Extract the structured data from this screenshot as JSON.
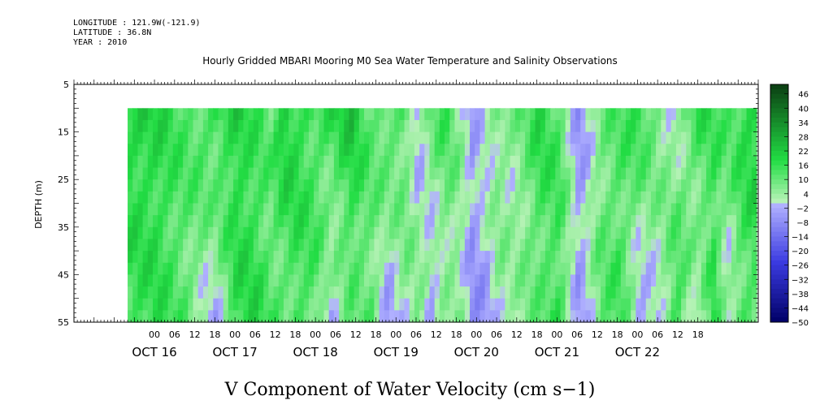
{
  "header": {
    "longitude": "LONGITUDE : 121.9W(-121.9)",
    "latitude": "LATITUDE : 36.8N",
    "year": "YEAR : 2010",
    "title": "Hourly Gridded MBARI Mooring M0 Sea Water Temperature and Salinity Observations"
  },
  "chart_data": {
    "type": "heatmap",
    "title": "Hourly Gridded MBARI Mooring M0 Sea Water Temperature and Salinity Observations",
    "variable": "V Component of Water Velocity (cm s-1)",
    "ylabel": "DEPTH (m)",
    "ylim": [
      5,
      55
    ],
    "y_inverted": true,
    "y_ticks": [
      5,
      15,
      25,
      35,
      45,
      55
    ],
    "data_depth_range": [
      10,
      55
    ],
    "hour_ticks": [
      "00",
      "06",
      "12",
      "18",
      "00",
      "06",
      "12",
      "18",
      "00",
      "06",
      "12",
      "18",
      "00",
      "06",
      "12",
      "18",
      "00",
      "06",
      "12",
      "18",
      "00",
      "06",
      "12",
      "18",
      "00",
      "06",
      "12",
      "18"
    ],
    "day_labels": [
      "OCT 16",
      "OCT 17",
      "OCT 18",
      "OCT 19",
      "OCT 20",
      "OCT 21",
      "OCT 22"
    ],
    "colorbar": {
      "labels": [
        "46",
        "40",
        "34",
        "28",
        "22",
        "16",
        "10",
        "4",
        "-2",
        "-8",
        "-14",
        "-20",
        "-26",
        "-32",
        "-38",
        "-44",
        "-50"
      ],
      "min": -50,
      "max": 50,
      "colors": {
        "strong_positive": "#0b3d12",
        "positive": "#22dd44",
        "weak_positive": "#b5f2b5",
        "weak_negative": "#b0b0ff",
        "negative": "#3a3ae0",
        "strong_negative": "#000066"
      }
    },
    "data_time_range_hours": [
      -20,
      167
    ],
    "field_profile": {
      "hours": [
        -20,
        -12,
        -3,
        5,
        12,
        17,
        22,
        26,
        30,
        35,
        40,
        46,
        52,
        57,
        62,
        66,
        70,
        74,
        78,
        82,
        86,
        90,
        94,
        98,
        102,
        108,
        114,
        120,
        126,
        132,
        138,
        143,
        149,
        154,
        158,
        162,
        165
      ],
      "top_values": [
        20,
        18,
        12,
        16,
        20,
        14,
        10,
        22,
        18,
        14,
        16,
        22,
        10,
        14,
        12,
        -4,
        10,
        14,
        6,
        -4,
        4,
        8,
        6,
        10,
        18,
        12,
        -6,
        8,
        12,
        16,
        8,
        2,
        16,
        14,
        12,
        16,
        20
      ],
      "bottom_values": [
        14,
        16,
        10,
        -3,
        16,
        18,
        12,
        8,
        14,
        12,
        -3,
        8,
        10,
        -6,
        4,
        8,
        -6,
        2,
        6,
        -6,
        -6,
        4,
        2,
        6,
        8,
        16,
        -5,
        10,
        14,
        -6,
        2,
        18,
        -3,
        16,
        -2,
        10,
        12
      ]
    }
  },
  "footer": {
    "label": "V Component of Water Velocity (cm s−1)"
  }
}
